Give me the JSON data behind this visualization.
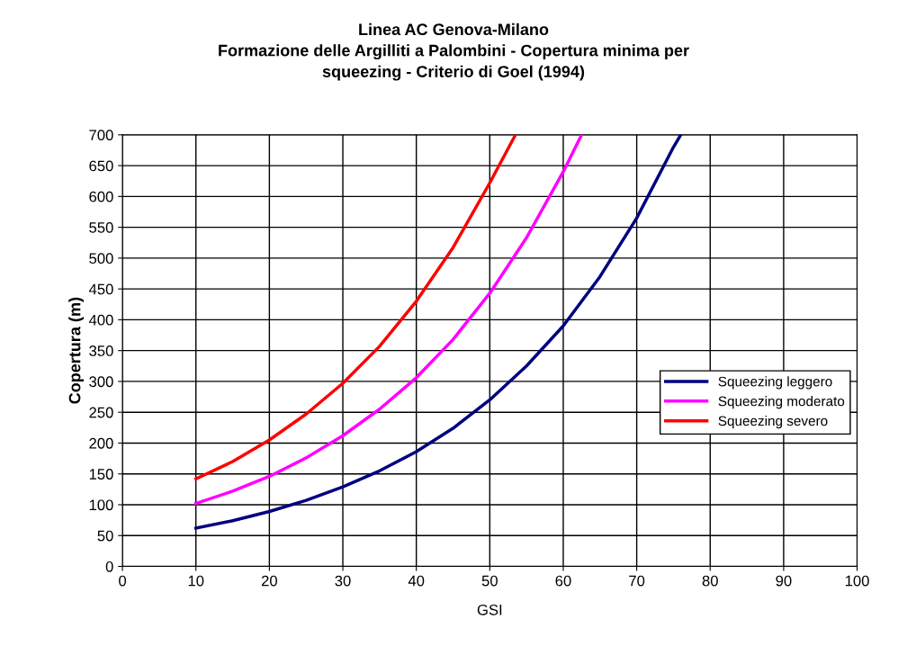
{
  "chart_data": {
    "type": "line",
    "title": "Linea AC Genova-Milano\nFormazione delle Argilliti a Palombini - Copertura minima per\nsqueezing - Criterio di Goel (1994)",
    "xlabel": "GSI",
    "ylabel": "Copertura (m)",
    "xlim": [
      0,
      100
    ],
    "xticks": [
      0,
      10,
      20,
      30,
      40,
      50,
      60,
      70,
      80,
      90,
      100
    ],
    "ylim": [
      0,
      700
    ],
    "yticks": [
      0,
      50,
      100,
      150,
      200,
      250,
      300,
      350,
      400,
      450,
      500,
      550,
      600,
      650,
      700
    ],
    "grid": true,
    "legend": "center right",
    "marker": "none",
    "line_style": "solid",
    "series": [
      {
        "name": "Squeezing leggero",
        "color": "#000080",
        "x": [
          10,
          15,
          20,
          25,
          30,
          35,
          40,
          45,
          50,
          55,
          60,
          65,
          70,
          75,
          76
        ],
        "values": [
          62,
          74,
          89,
          107,
          129,
          155,
          186,
          224,
          270,
          325,
          390,
          470,
          565,
          680,
          700
        ]
      },
      {
        "name": "Squeezing moderato",
        "color": "#ff00ff",
        "x": [
          10,
          15,
          20,
          25,
          30,
          35,
          40,
          45,
          50,
          55,
          60,
          62.5
        ],
        "values": [
          102,
          122,
          146,
          176,
          212,
          255,
          306,
          368,
          443,
          533,
          640,
          700
        ]
      },
      {
        "name": "Squeezing severo",
        "color": "#ff0000",
        "x": [
          10,
          15,
          20,
          25,
          30,
          35,
          40,
          45,
          50,
          53.5
        ],
        "values": [
          142,
          170,
          205,
          247,
          297,
          357,
          430,
          517,
          622,
          700
        ]
      }
    ]
  }
}
